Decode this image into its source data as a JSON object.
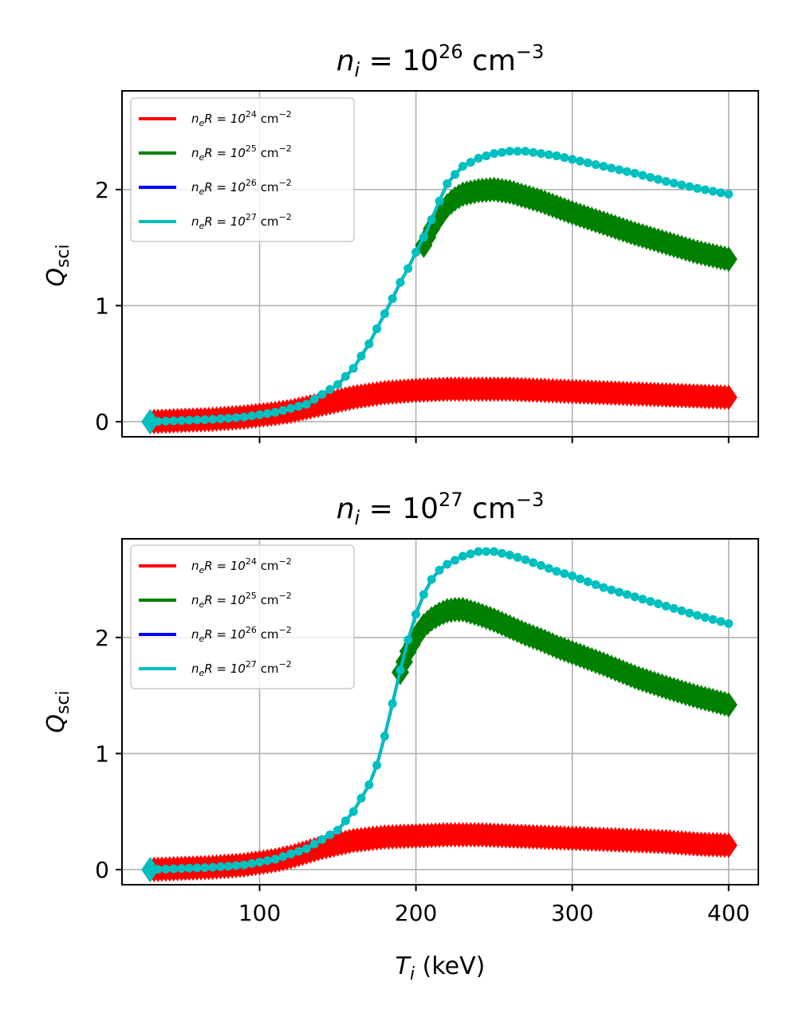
{
  "chart_data": [
    {
      "type": "line",
      "title": {
        "var": "n",
        "sub": "i",
        "eq": " = 10",
        "exp": "26",
        "unit": " cm",
        "unit_exp": "−3"
      },
      "xlabel": "",
      "ylabel": {
        "var": "Q",
        "sub": "sci"
      },
      "xlim": [
        12,
        419
      ],
      "ylim": [
        -0.13,
        2.85
      ],
      "xticks": [
        100,
        200,
        300,
        400
      ],
      "xtick_labels_visible": false,
      "yticks": [
        0,
        1,
        2
      ],
      "ytick_labels": [
        "0",
        "1",
        "2"
      ],
      "grid": true,
      "legend_position": "top-left",
      "series": [
        {
          "name": "n_eR = 10^24 cm^-2",
          "legend": {
            "pre": "n",
            "sub": "e",
            "mid": "R = 10",
            "exp": "24",
            "post": " cm",
            "post_exp": "−2"
          },
          "color": "#ff0000",
          "marker": "diamond",
          "x": [
            30,
            50,
            70,
            90,
            110,
            120,
            130,
            140,
            150,
            160,
            180,
            200,
            220,
            240,
            260,
            280,
            300,
            320,
            340,
            360,
            380,
            400
          ],
          "y": [
            0.0,
            0.01,
            0.02,
            0.04,
            0.07,
            0.09,
            0.12,
            0.15,
            0.18,
            0.21,
            0.25,
            0.27,
            0.28,
            0.28,
            0.28,
            0.27,
            0.26,
            0.25,
            0.24,
            0.23,
            0.22,
            0.21
          ]
        },
        {
          "name": "n_eR = 10^25 cm^-2",
          "legend": {
            "pre": "n",
            "sub": "e",
            "mid": "R = 10",
            "exp": "25",
            "post": " cm",
            "post_exp": "−2"
          },
          "color": "#008000",
          "marker": "diamond",
          "x": [
            205,
            210,
            215,
            220,
            225,
            230,
            240,
            250,
            260,
            270,
            280,
            290,
            300,
            320,
            340,
            360,
            380,
            400
          ],
          "y": [
            1.52,
            1.66,
            1.77,
            1.86,
            1.92,
            1.96,
            1.99,
            2.0,
            1.98,
            1.94,
            1.9,
            1.85,
            1.8,
            1.71,
            1.62,
            1.54,
            1.46,
            1.4
          ]
        },
        {
          "name": "n_eR = 10^26 cm^-2",
          "legend": {
            "pre": "n",
            "sub": "e",
            "mid": "R = 10",
            "exp": "26",
            "post": " cm",
            "post_exp": "−2"
          },
          "color": "#0000ff",
          "marker": "none",
          "x": [
            30,
            50,
            70,
            90,
            110,
            130,
            150,
            160,
            170,
            180,
            185,
            190,
            195,
            200,
            205,
            210,
            215,
            220,
            225,
            230,
            240,
            250,
            260,
            270,
            280,
            290,
            300,
            320,
            340,
            360,
            380,
            400
          ],
          "y": [
            0.0,
            0.01,
            0.02,
            0.04,
            0.08,
            0.15,
            0.32,
            0.46,
            0.67,
            0.93,
            1.06,
            1.2,
            1.32,
            1.46,
            1.59,
            1.74,
            1.9,
            2.05,
            2.13,
            2.2,
            2.27,
            2.31,
            2.33,
            2.33,
            2.31,
            2.29,
            2.26,
            2.2,
            2.14,
            2.07,
            2.01,
            1.96
          ]
        },
        {
          "name": "n_eR = 10^27 cm^-2",
          "legend": {
            "pre": "n",
            "sub": "e",
            "mid": "R = 10",
            "exp": "27",
            "post": " cm",
            "post_exp": "−2"
          },
          "color": "#00bfbf",
          "marker": "dot",
          "x": [
            30,
            50,
            70,
            90,
            110,
            130,
            150,
            160,
            170,
            180,
            185,
            190,
            195,
            200,
            205,
            210,
            215,
            220,
            225,
            230,
            240,
            250,
            260,
            270,
            280,
            290,
            300,
            320,
            340,
            360,
            380,
            400
          ],
          "y": [
            0.0,
            0.01,
            0.02,
            0.04,
            0.08,
            0.15,
            0.32,
            0.46,
            0.67,
            0.93,
            1.06,
            1.2,
            1.32,
            1.46,
            1.59,
            1.74,
            1.9,
            2.05,
            2.13,
            2.2,
            2.27,
            2.31,
            2.33,
            2.33,
            2.31,
            2.29,
            2.26,
            2.2,
            2.14,
            2.07,
            2.01,
            1.96
          ]
        }
      ]
    },
    {
      "type": "line",
      "title": {
        "var": "n",
        "sub": "i",
        "eq": " = 10",
        "exp": "27",
        "unit": " cm",
        "unit_exp": "−3"
      },
      "xlabel": {
        "var": "T",
        "sub": "i",
        "rest": " (keV)"
      },
      "ylabel": {
        "var": "Q",
        "sub": "sci"
      },
      "xlim": [
        12,
        419
      ],
      "ylim": [
        -0.13,
        2.85
      ],
      "xticks": [
        100,
        200,
        300,
        400
      ],
      "xtick_labels": [
        "100",
        "200",
        "300",
        "400"
      ],
      "xtick_labels_visible": true,
      "yticks": [
        0,
        1,
        2
      ],
      "ytick_labels": [
        "0",
        "1",
        "2"
      ],
      "grid": true,
      "legend_position": "top-left",
      "series": [
        {
          "name": "n_eR = 10^24 cm^-2",
          "legend": {
            "pre": "n",
            "sub": "e",
            "mid": "R = 10",
            "exp": "24",
            "post": " cm",
            "post_exp": "−2"
          },
          "color": "#ff0000",
          "marker": "diamond",
          "x": [
            30,
            50,
            70,
            90,
            110,
            120,
            130,
            140,
            150,
            160,
            180,
            200,
            220,
            240,
            260,
            280,
            300,
            320,
            340,
            360,
            380,
            400
          ],
          "y": [
            0.0,
            0.01,
            0.02,
            0.04,
            0.08,
            0.11,
            0.15,
            0.19,
            0.22,
            0.25,
            0.28,
            0.29,
            0.3,
            0.3,
            0.29,
            0.28,
            0.27,
            0.26,
            0.25,
            0.24,
            0.22,
            0.21
          ]
        },
        {
          "name": "n_eR = 10^25 cm^-2",
          "legend": {
            "pre": "n",
            "sub": "e",
            "mid": "R = 10",
            "exp": "25",
            "post": " cm",
            "post_exp": "−2"
          },
          "color": "#008000",
          "marker": "diamond",
          "x": [
            190,
            195,
            200,
            205,
            210,
            215,
            220,
            225,
            230,
            240,
            250,
            260,
            270,
            280,
            290,
            300,
            320,
            340,
            360,
            380,
            400
          ],
          "y": [
            1.7,
            1.88,
            2.0,
            2.1,
            2.16,
            2.2,
            2.23,
            2.24,
            2.24,
            2.2,
            2.15,
            2.09,
            2.03,
            1.98,
            1.92,
            1.87,
            1.77,
            1.66,
            1.57,
            1.49,
            1.42
          ]
        },
        {
          "name": "n_eR = 10^26 cm^-2",
          "legend": {
            "pre": "n",
            "sub": "e",
            "mid": "R = 10",
            "exp": "26",
            "post": " cm",
            "post_exp": "−2"
          },
          "color": "#0000ff",
          "marker": "none",
          "x": [
            30,
            50,
            70,
            90,
            110,
            130,
            150,
            160,
            170,
            175,
            180,
            185,
            190,
            195,
            200,
            205,
            210,
            215,
            220,
            230,
            240,
            250,
            260,
            270,
            280,
            290,
            300,
            320,
            340,
            360,
            380,
            400
          ],
          "y": [
            0.0,
            0.01,
            0.02,
            0.04,
            0.09,
            0.18,
            0.34,
            0.5,
            0.73,
            0.9,
            1.15,
            1.43,
            1.72,
            1.98,
            2.2,
            2.37,
            2.5,
            2.58,
            2.63,
            2.7,
            2.74,
            2.74,
            2.71,
            2.67,
            2.62,
            2.57,
            2.53,
            2.43,
            2.35,
            2.27,
            2.19,
            2.12
          ]
        },
        {
          "name": "n_eR = 10^27 cm^-2",
          "legend": {
            "pre": "n",
            "sub": "e",
            "mid": "R = 10",
            "exp": "27",
            "post": " cm",
            "post_exp": "−2"
          },
          "color": "#00bfbf",
          "marker": "dot",
          "x": [
            30,
            50,
            70,
            90,
            110,
            130,
            150,
            160,
            170,
            175,
            180,
            185,
            190,
            195,
            200,
            205,
            210,
            215,
            220,
            230,
            240,
            250,
            260,
            270,
            280,
            290,
            300,
            320,
            340,
            360,
            380,
            400
          ],
          "y": [
            0.0,
            0.01,
            0.02,
            0.04,
            0.09,
            0.18,
            0.34,
            0.5,
            0.73,
            0.9,
            1.15,
            1.43,
            1.72,
            1.98,
            2.2,
            2.37,
            2.5,
            2.58,
            2.63,
            2.7,
            2.74,
            2.74,
            2.71,
            2.67,
            2.62,
            2.57,
            2.53,
            2.43,
            2.35,
            2.27,
            2.19,
            2.12
          ]
        }
      ]
    }
  ]
}
